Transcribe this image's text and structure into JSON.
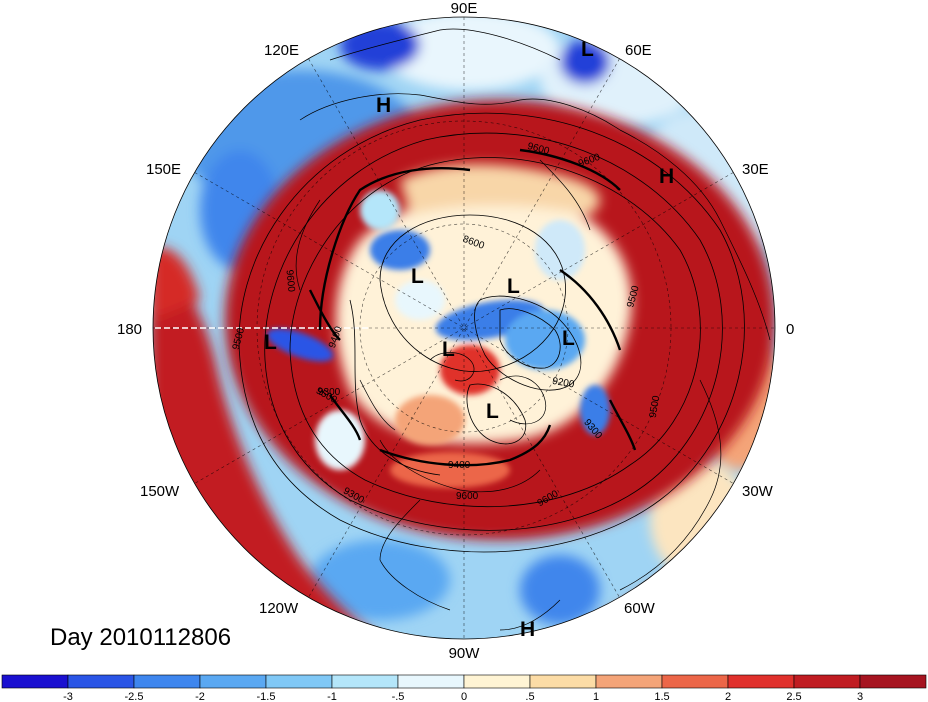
{
  "title": "Day 2010112806",
  "longitude_labels": {
    "n": "90E",
    "ne_top": "60E",
    "nw_top": "120E",
    "e": "30E",
    "w": "150E",
    "right": "0",
    "left": "180",
    "se": "30W",
    "sw": "150W",
    "s_right": "60W",
    "s_left": "120W",
    "s": "90W"
  },
  "pressure_centers": [
    {
      "type": "L"
    },
    {
      "type": "H"
    },
    {
      "type": "H"
    },
    {
      "type": "L"
    },
    {
      "type": "L"
    },
    {
      "type": "L"
    },
    {
      "type": "L"
    },
    {
      "type": "L"
    },
    {
      "type": "L"
    },
    {
      "type": "H"
    }
  ],
  "contour_values": [
    "9600",
    "9600",
    "8600",
    "9500",
    "9600",
    "9400",
    "9500",
    "9200",
    "9300",
    "9500",
    "9300",
    "9500",
    "9400",
    "9600",
    "9600",
    "9300"
  ],
  "colorbar": {
    "ticks": [
      "-3",
      "-2.5",
      "-2",
      "-1.5",
      "-1",
      "-.5",
      "0",
      ".5",
      "1",
      "1.5",
      "2",
      "2.5",
      "3"
    ],
    "colors": [
      "#1a10d0",
      "#2a55e6",
      "#3e86ee",
      "#5aa8f2",
      "#80c8f6",
      "#b4e6fa",
      "#e8f7fd",
      "#fff4d4",
      "#fcdca6",
      "#f4a478",
      "#ec6648",
      "#e0302c",
      "#c01c22",
      "#a61420"
    ]
  },
  "colors": {
    "ocean_warm": "#c21a22",
    "ring_warm": "#b8161e",
    "cold": "#3a7ee8",
    "neutral": "#fff2d8"
  }
}
